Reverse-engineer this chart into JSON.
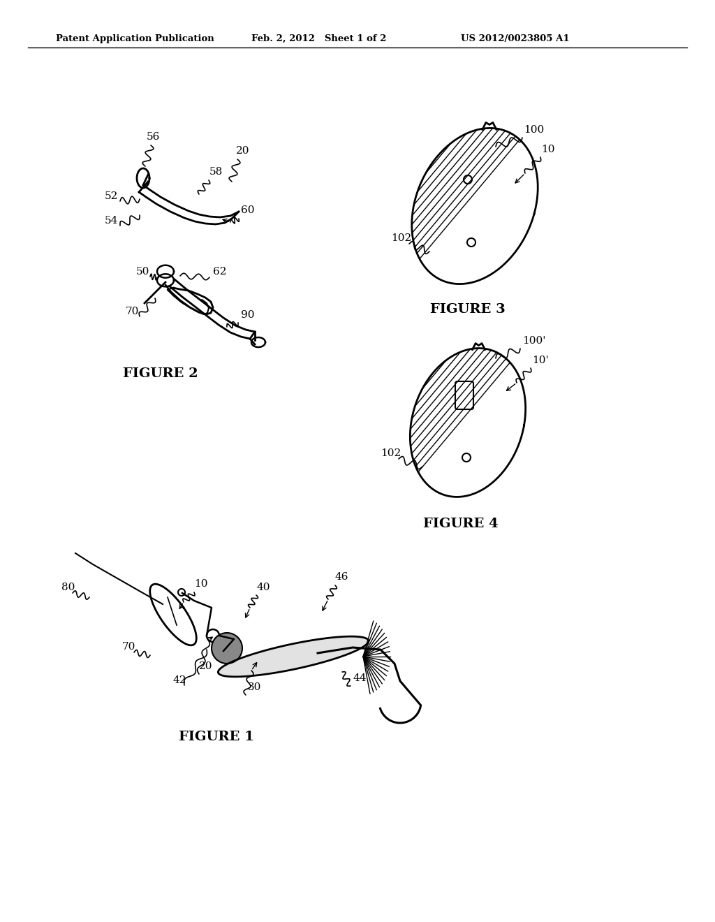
{
  "bg_color": "#ffffff",
  "header_left": "Patent Application Publication",
  "header_mid": "Feb. 2, 2012   Sheet 1 of 2",
  "header_right": "US 2012/0023805 A1",
  "fig1_label": "FIGURE 1",
  "fig2_label": "FIGURE 2",
  "fig3_label": "FIGURE 3",
  "fig4_label": "FIGURE 4",
  "line_color": "#000000",
  "text_color": "#000000"
}
